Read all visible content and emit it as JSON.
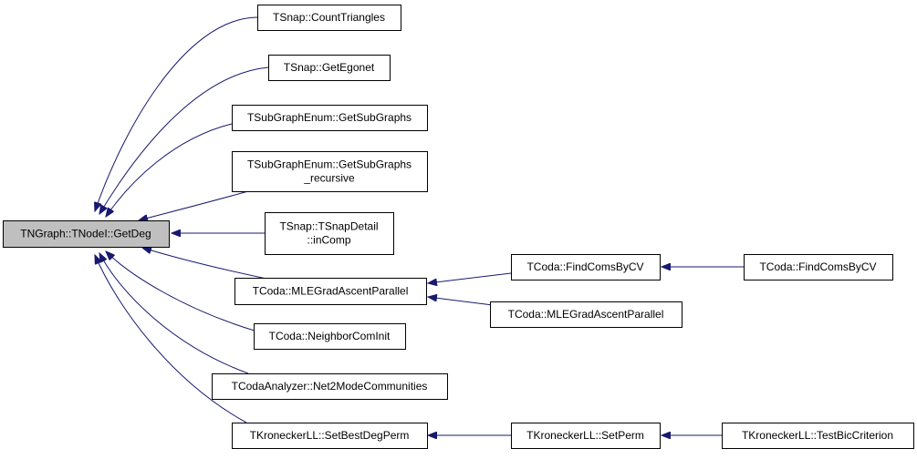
{
  "nodes": [
    {
      "lines": [
        "TNGraph::TNodeI::GetDeg"
      ]
    },
    {
      "lines": [
        "TSnap::CountTriangles"
      ]
    },
    {
      "lines": [
        "TSnap::GetEgonet"
      ]
    },
    {
      "lines": [
        "TSubGraphEnum::GetSubGraphs"
      ]
    },
    {
      "lines": [
        "TSubGraphEnum::GetSubGraphs",
        "_recursive"
      ]
    },
    {
      "lines": [
        "TSnap::TSnapDetail",
        "::inComp"
      ]
    },
    {
      "lines": [
        "TCoda::MLEGradAscentParallel"
      ]
    },
    {
      "lines": [
        "TCoda::NeighborComInit"
      ]
    },
    {
      "lines": [
        "TCodaAnalyzer::Net2ModeCommunities"
      ]
    },
    {
      "lines": [
        "TKroneckerLL::SetBestDegPerm"
      ]
    },
    {
      "lines": [
        "TCoda::FindComsByCV"
      ]
    },
    {
      "lines": [
        "TCoda::MLEGradAscentParallel"
      ]
    },
    {
      "lines": [
        "TCoda::FindComsByCV"
      ]
    },
    {
      "lines": [
        "TKroneckerLL::SetPerm"
      ]
    },
    {
      "lines": [
        "TKroneckerLL::TestBicCriterion"
      ]
    }
  ]
}
